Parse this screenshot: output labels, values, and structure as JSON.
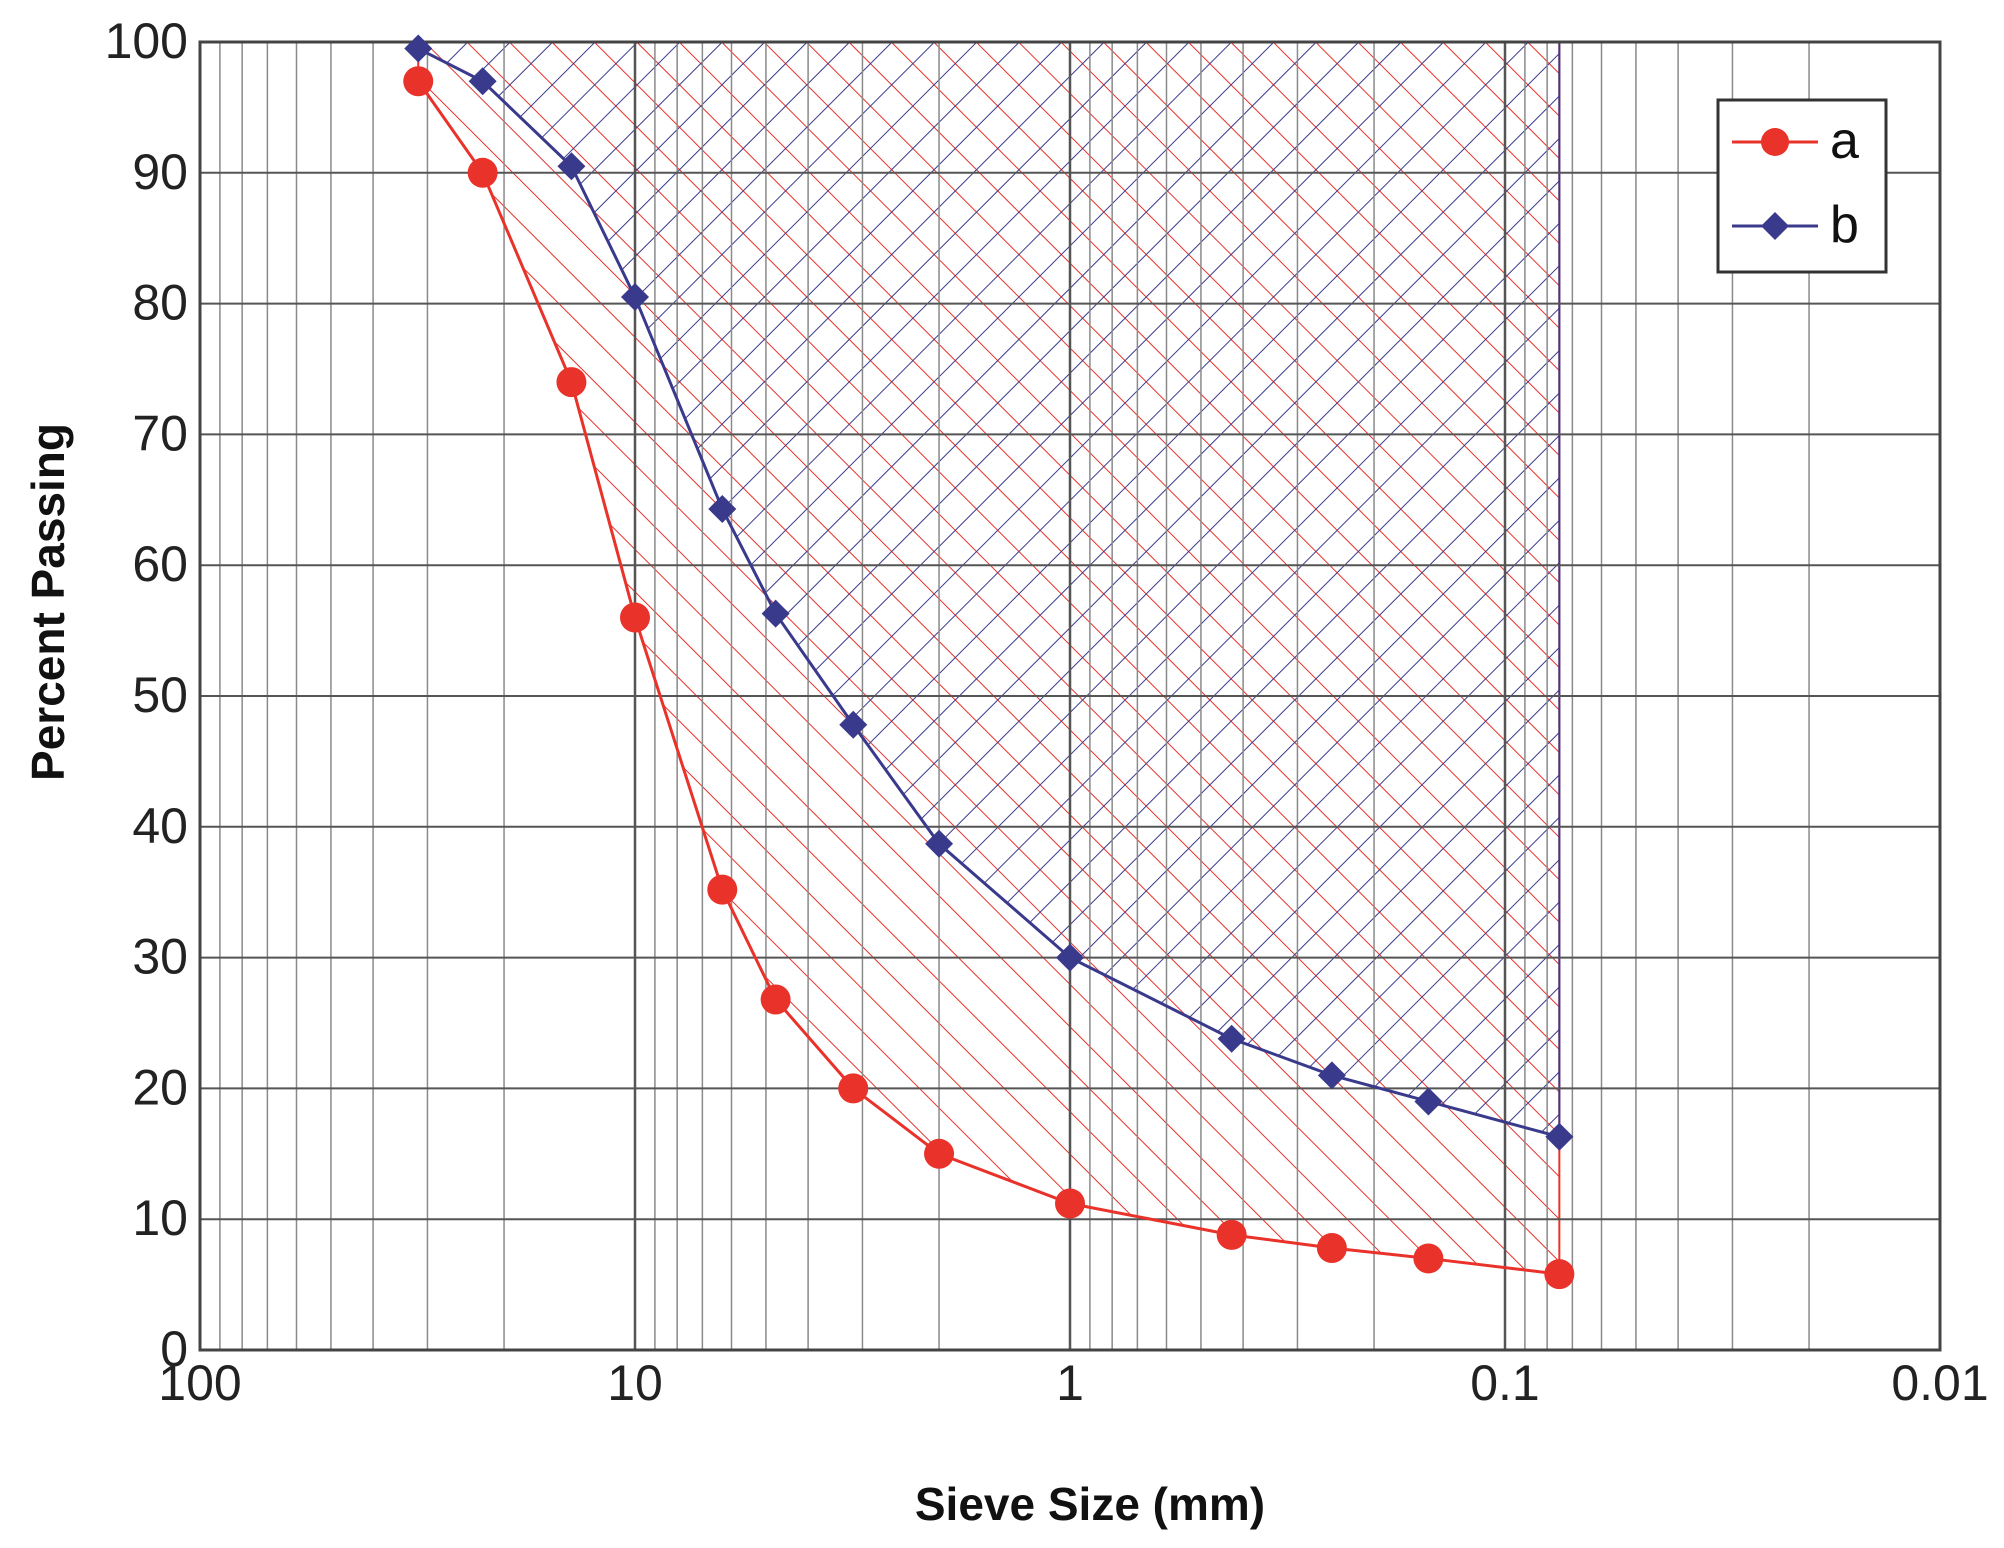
{
  "chart_data": {
    "type": "line",
    "title": "",
    "xlabel": "Sieve Size (mm)",
    "ylabel": "Percent Passing",
    "x_scale": "log",
    "x_reversed": true,
    "xlim": [
      100,
      0.01
    ],
    "ylim": [
      0,
      100
    ],
    "x_tick_labels": [
      {
        "value": 100,
        "label": "100"
      },
      {
        "value": 10,
        "label": "10"
      },
      {
        "value": 1,
        "label": "1"
      },
      {
        "value": 0.1,
        "label": "0.1"
      },
      {
        "value": 0.01,
        "label": "0.01"
      }
    ],
    "y_tick_labels": [
      {
        "value": 0,
        "label": "0"
      },
      {
        "value": 10,
        "label": "10"
      },
      {
        "value": 20,
        "label": "20"
      },
      {
        "value": 30,
        "label": "30"
      },
      {
        "value": 40,
        "label": "40"
      },
      {
        "value": 50,
        "label": "50"
      },
      {
        "value": 60,
        "label": "60"
      },
      {
        "value": 70,
        "label": "70"
      },
      {
        "value": 80,
        "label": "80"
      },
      {
        "value": 90,
        "label": "90"
      },
      {
        "value": 100,
        "label": "100"
      }
    ],
    "grid": true,
    "legend_position": "top-right",
    "x": [
      31.5,
      22.4,
      14,
      10,
      6.3,
      4.75,
      3.15,
      2,
      1,
      0.425,
      0.25,
      0.15,
      0.075
    ],
    "series": [
      {
        "name": "a",
        "color": "#e8322a",
        "marker": "circle",
        "values": [
          97,
          90,
          74,
          56,
          35.2,
          26.8,
          20,
          15,
          11.2,
          8.8,
          7.8,
          7,
          5.8
        ]
      },
      {
        "name": "b",
        "color": "#3a3a8c",
        "marker": "diamond",
        "values": [
          99.5,
          97,
          90.5,
          80.5,
          64.3,
          56.3,
          47.8,
          38.7,
          30,
          23.8,
          21,
          19,
          16.3
        ]
      }
    ],
    "shaded_bands": [
      {
        "series": "a",
        "color": "#e8322a",
        "hatch": "forward-diagonal"
      },
      {
        "series": "b",
        "color": "#3a3a8c",
        "hatch": "backward-diagonal"
      }
    ]
  }
}
